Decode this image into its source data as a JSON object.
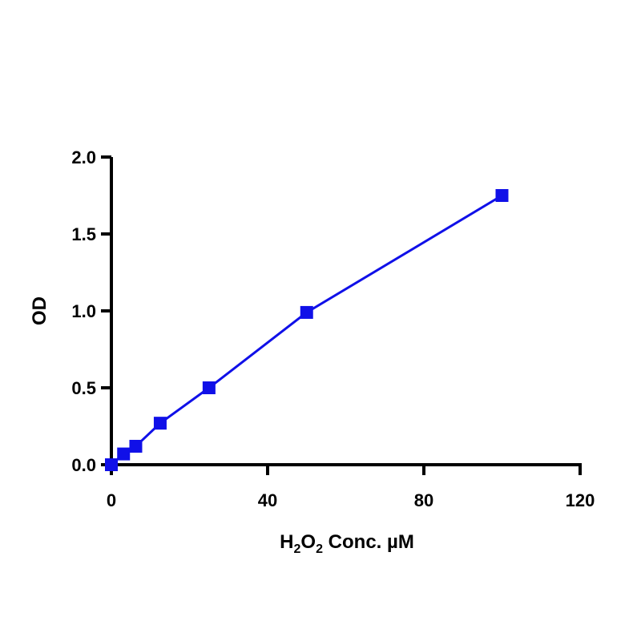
{
  "chart_data": {
    "type": "line",
    "xlabel": {
      "base": "H",
      "sub1": "2",
      "mid": "O",
      "sub2": "2",
      "rest": " Conc. µM"
    },
    "ylabel": "OD",
    "xlim": [
      0,
      120
    ],
    "ylim": [
      0,
      2.0
    ],
    "xticks": [
      "0",
      "40",
      "80",
      "120"
    ],
    "yticks": [
      "0.0",
      "0.5",
      "1.0",
      "1.5",
      "2.0"
    ],
    "grid": false,
    "series": [
      {
        "x": [
          0,
          3.125,
          6.25,
          12.5,
          25,
          50,
          100
        ],
        "y": [
          0.0,
          0.07,
          0.12,
          0.27,
          0.5,
          0.99,
          1.75
        ],
        "color": "#1010e8",
        "marker": "square"
      }
    ]
  }
}
